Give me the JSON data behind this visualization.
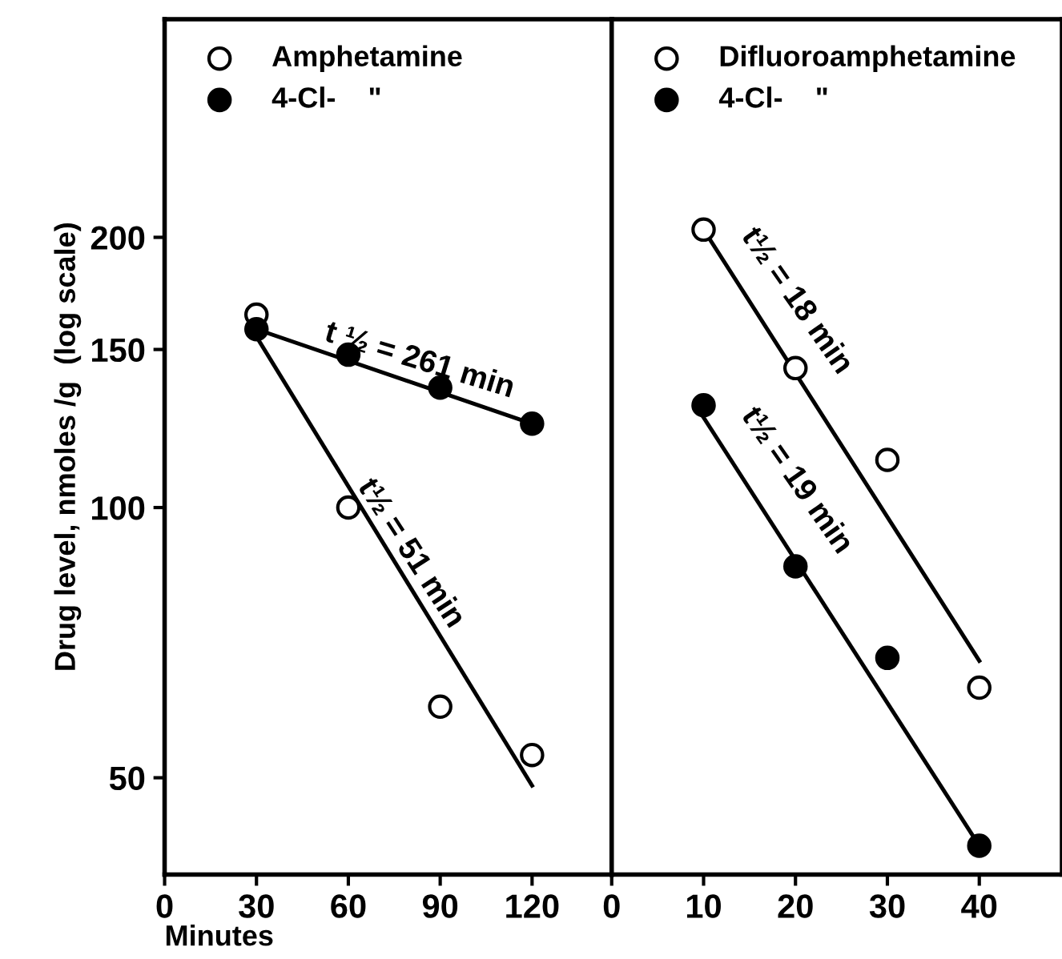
{
  "chart_data": [
    {
      "type": "scatter",
      "xlabel": "Minutes",
      "ylabel": "Drug level, nmoles /g  (log scale)",
      "log": "y",
      "xlim": [
        0,
        146
      ],
      "xticks": [
        0,
        30,
        60,
        90,
        120
      ],
      "ylim": [
        39,
        350
      ],
      "yticks": [
        50,
        100,
        150,
        200
      ],
      "legend": "top left",
      "grid": false,
      "x": [
        30,
        60,
        90,
        120
      ],
      "series": [
        {
          "name": "Amphetamine",
          "marker": "circle",
          "color": "#ffffff",
          "values": [
            164,
            100,
            60,
            53
          ]
        },
        {
          "name": "4-Cl-    \"",
          "marker": "circle",
          "color": "#000000",
          "values": [
            158,
            148,
            136,
            124
          ]
        },
        {
          "type": "line",
          "marker": "none",
          "color": "#000000",
          "x": [
            30,
            120
          ],
          "values": [
            158,
            124
          ]
        },
        {
          "type": "line",
          "marker": "none",
          "color": "#000000",
          "x": [
            30,
            120
          ],
          "values": [
            155,
            49
          ]
        }
      ],
      "annotations": [
        "t ½ = 261 min",
        "t½ = 51 min"
      ]
    },
    {
      "type": "scatter",
      "log": "y",
      "xlim": [
        0,
        49
      ],
      "xticks": [
        0,
        10,
        20,
        30,
        40
      ],
      "ylim": [
        39,
        350
      ],
      "yticks": [
        50,
        100,
        150,
        200
      ],
      "tick_labels": "x",
      "legend": "top left",
      "grid": false,
      "x": [
        10,
        20,
        30,
        40
      ],
      "series": [
        {
          "name": "Difluoroamphetamine",
          "marker": "circle",
          "color": "#ffffff",
          "values": [
            204,
            143,
            113,
            63
          ]
        },
        {
          "name": "4-Cl-    \"",
          "marker": "circle",
          "color": "#000000",
          "values": [
            130,
            86,
            68,
            42
          ]
        },
        {
          "type": "line",
          "marker": "none",
          "color": "#000000",
          "x": [
            10,
            40
          ],
          "values": [
            204,
            67.5
          ]
        },
        {
          "type": "line",
          "marker": "none",
          "color": "#000000",
          "x": [
            10,
            40
          ],
          "values": [
            126,
            42
          ]
        }
      ],
      "annotations": [
        "t½ = 18 min",
        "t½ = 19 min"
      ]
    }
  ]
}
